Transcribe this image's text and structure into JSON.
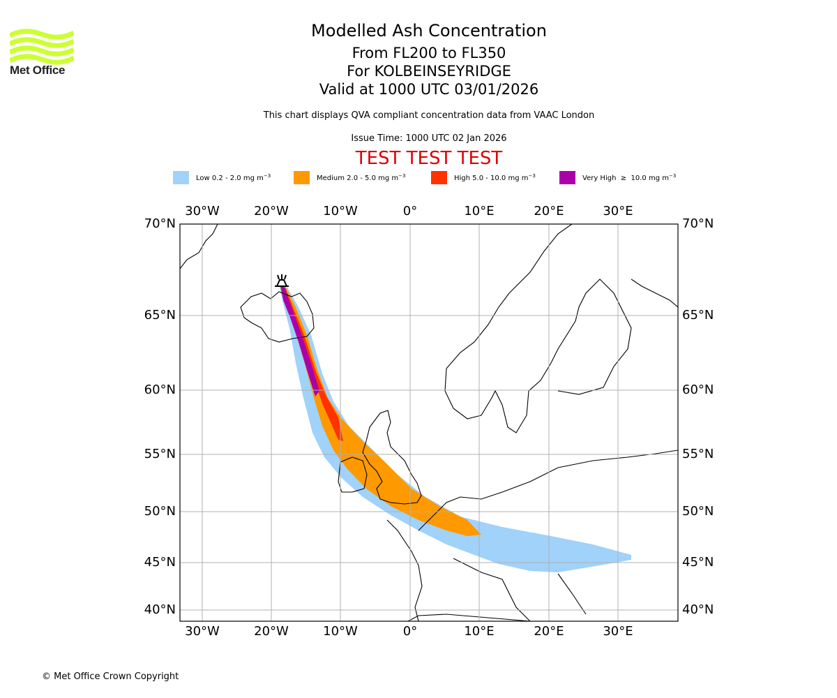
{
  "logo": {
    "text": "Met Office",
    "color": "#ccff33"
  },
  "title": {
    "main": "Modelled Ash Concentration",
    "levels": "From FL200 to FL350",
    "volcano": "For KOLBEINSEYRIDGE",
    "valid": "Valid at 1000 UTC 03/01/2026"
  },
  "subtitle": "This chart displays QVA compliant concentration data from VAAC London",
  "issue_time": "Issue Time: 1000 UTC 02 Jan 2026",
  "test_banner": "TEST TEST TEST",
  "legend": [
    {
      "label": "Low 0.2 - 2.0 mg m",
      "exp": "−3",
      "color": "#a0d2fa"
    },
    {
      "label": "Medium 2.0 - 5.0 mg m",
      "exp": "−3",
      "color": "#ff9900"
    },
    {
      "label": "High 5.0 - 10.0 mg m",
      "exp": "−3",
      "color": "#ff3300"
    },
    {
      "label": "Very High  ≥  10.0 mg m",
      "exp": "−3",
      "color": "#aa00aa"
    }
  ],
  "map": {
    "lon_labels_top": [
      "30°W",
      "20°W",
      "10°W",
      "0°",
      "10°E",
      "20°E",
      "30°E"
    ],
    "lon_labels_bottom": [
      "30°W",
      "20°W",
      "10°W",
      "0°",
      "10°E",
      "20°E",
      "30°E"
    ],
    "lat_labels_left": [
      "70°N",
      "65°N",
      "60°N",
      "55°N",
      "50°N",
      "45°N",
      "40°N"
    ],
    "lat_labels_right": [
      "70°N",
      "65°N",
      "60°N",
      "55°N",
      "50°N",
      "45°N",
      "40°N"
    ],
    "volcano_marker": "volcano-icon",
    "grid_color": "#b0b0b0"
  },
  "copyright": "© Met Office Crown Copyright"
}
